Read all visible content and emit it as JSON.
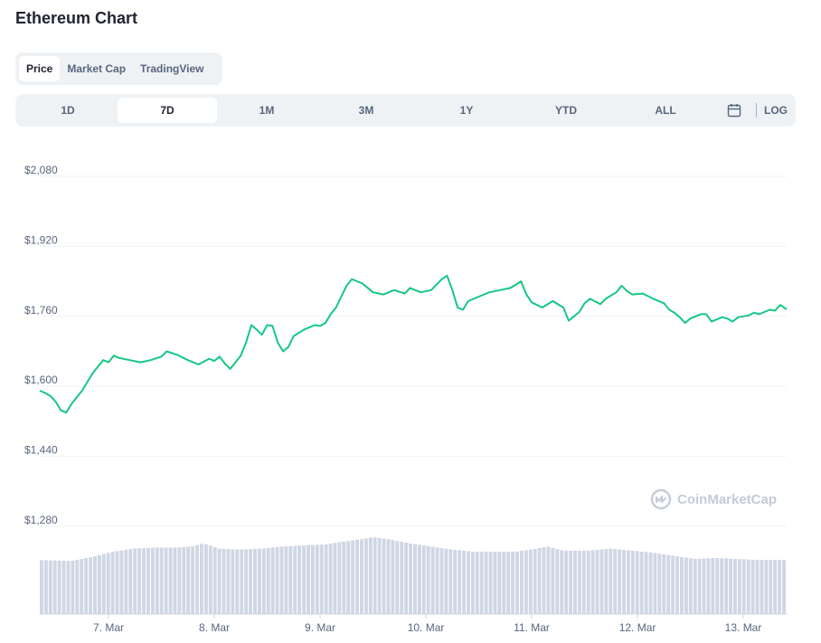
{
  "title": "Ethereum Chart",
  "chart_type_tabs": [
    "Price",
    "Market Cap",
    "TradingView"
  ],
  "active_chart_type": "Price",
  "ranges": [
    "1D",
    "7D",
    "1M",
    "3M",
    "1Y",
    "YTD",
    "ALL"
  ],
  "active_range": "7D",
  "log_label": "LOG",
  "watermark": "CoinMarketCap",
  "colors": {
    "line": "#16c784",
    "volume": "#cfd6e4",
    "grid": "#eff2f5",
    "axis_text": "#58667e"
  },
  "chart_data": {
    "type": "line",
    "title": "",
    "xlabel": "",
    "ylabel": "",
    "yticks": [
      "$2,080",
      "$1,920",
      "$1,760",
      "$1,600",
      "$1,440",
      "$1,280"
    ],
    "ytick_values": [
      2080,
      1920,
      1760,
      1600,
      1440,
      1280
    ],
    "ylim": [
      1280,
      2080
    ],
    "xticks": [
      "7. Mar",
      "8. Mar",
      "9. Mar",
      "10. Mar",
      "11. Mar",
      "12. Mar",
      "13. Mar"
    ],
    "xtick_values": [
      0.65,
      1.65,
      2.65,
      3.65,
      4.65,
      5.65,
      6.65
    ],
    "xlim": [
      0,
      7.06
    ],
    "grid": true,
    "series": [
      {
        "values": [
          [
            0.0,
            1590
          ],
          [
            0.05,
            1585
          ],
          [
            0.1,
            1578
          ],
          [
            0.15,
            1565
          ],
          [
            0.2,
            1545
          ],
          [
            0.25,
            1540
          ],
          [
            0.3,
            1560
          ],
          [
            0.35,
            1575
          ],
          [
            0.4,
            1590
          ],
          [
            0.45,
            1610
          ],
          [
            0.5,
            1630
          ],
          [
            0.55,
            1645
          ],
          [
            0.6,
            1660
          ],
          [
            0.65,
            1655
          ],
          [
            0.7,
            1670
          ],
          [
            0.75,
            1665
          ],
          [
            0.85,
            1660
          ],
          [
            0.95,
            1655
          ],
          [
            1.05,
            1660
          ],
          [
            1.15,
            1668
          ],
          [
            1.2,
            1680
          ],
          [
            1.3,
            1672
          ],
          [
            1.4,
            1660
          ],
          [
            1.5,
            1650
          ],
          [
            1.6,
            1663
          ],
          [
            1.65,
            1658
          ],
          [
            1.7,
            1668
          ],
          [
            1.75,
            1652
          ],
          [
            1.8,
            1640
          ],
          [
            1.85,
            1655
          ],
          [
            1.9,
            1670
          ],
          [
            1.95,
            1700
          ],
          [
            2.0,
            1740
          ],
          [
            2.05,
            1730
          ],
          [
            2.1,
            1718
          ],
          [
            2.15,
            1740
          ],
          [
            2.2,
            1738
          ],
          [
            2.25,
            1700
          ],
          [
            2.3,
            1680
          ],
          [
            2.35,
            1690
          ],
          [
            2.4,
            1715
          ],
          [
            2.5,
            1730
          ],
          [
            2.6,
            1740
          ],
          [
            2.65,
            1738
          ],
          [
            2.7,
            1745
          ],
          [
            2.75,
            1765
          ],
          [
            2.8,
            1780
          ],
          [
            2.85,
            1805
          ],
          [
            2.9,
            1830
          ],
          [
            2.95,
            1845
          ],
          [
            3.05,
            1835
          ],
          [
            3.15,
            1815
          ],
          [
            3.25,
            1810
          ],
          [
            3.35,
            1820
          ],
          [
            3.45,
            1812
          ],
          [
            3.5,
            1825
          ],
          [
            3.6,
            1815
          ],
          [
            3.7,
            1820
          ],
          [
            3.8,
            1845
          ],
          [
            3.85,
            1853
          ],
          [
            3.9,
            1820
          ],
          [
            3.95,
            1780
          ],
          [
            4.0,
            1775
          ],
          [
            4.05,
            1795
          ],
          [
            4.15,
            1805
          ],
          [
            4.25,
            1815
          ],
          [
            4.35,
            1820
          ],
          [
            4.45,
            1825
          ],
          [
            4.55,
            1840
          ],
          [
            4.6,
            1810
          ],
          [
            4.65,
            1792
          ],
          [
            4.75,
            1780
          ],
          [
            4.85,
            1795
          ],
          [
            4.95,
            1780
          ],
          [
            5.0,
            1750
          ],
          [
            5.05,
            1760
          ],
          [
            5.1,
            1770
          ],
          [
            5.15,
            1790
          ],
          [
            5.2,
            1800
          ],
          [
            5.3,
            1788
          ],
          [
            5.35,
            1800
          ],
          [
            5.45,
            1815
          ],
          [
            5.5,
            1830
          ],
          [
            5.55,
            1818
          ],
          [
            5.6,
            1810
          ],
          [
            5.7,
            1812
          ],
          [
            5.8,
            1800
          ],
          [
            5.9,
            1790
          ],
          [
            5.95,
            1775
          ],
          [
            6.0,
            1768
          ],
          [
            6.05,
            1758
          ],
          [
            6.1,
            1745
          ],
          [
            6.15,
            1755
          ],
          [
            6.25,
            1765
          ],
          [
            6.3,
            1765
          ],
          [
            6.35,
            1748
          ],
          [
            6.45,
            1758
          ],
          [
            6.5,
            1755
          ],
          [
            6.55,
            1748
          ],
          [
            6.6,
            1758
          ],
          [
            6.65,
            1760
          ],
          [
            6.7,
            1762
          ],
          [
            6.75,
            1768
          ],
          [
            6.8,
            1765
          ],
          [
            6.85,
            1770
          ],
          [
            6.9,
            1775
          ],
          [
            6.95,
            1773
          ],
          [
            7.0,
            1786
          ],
          [
            7.06,
            1776
          ]
        ]
      }
    ],
    "volume_relative": [
      [
        0.0,
        0.52
      ],
      [
        0.3,
        0.51
      ],
      [
        0.5,
        0.55
      ],
      [
        0.7,
        0.6
      ],
      [
        0.9,
        0.63
      ],
      [
        1.1,
        0.64
      ],
      [
        1.3,
        0.64
      ],
      [
        1.45,
        0.65
      ],
      [
        1.55,
        0.68
      ],
      [
        1.7,
        0.63
      ],
      [
        1.9,
        0.62
      ],
      [
        2.1,
        0.63
      ],
      [
        2.3,
        0.65
      ],
      [
        2.5,
        0.66
      ],
      [
        2.7,
        0.67
      ],
      [
        2.9,
        0.7
      ],
      [
        3.05,
        0.72
      ],
      [
        3.15,
        0.74
      ],
      [
        3.3,
        0.72
      ],
      [
        3.5,
        0.68
      ],
      [
        3.7,
        0.65
      ],
      [
        3.9,
        0.62
      ],
      [
        4.1,
        0.6
      ],
      [
        4.3,
        0.6
      ],
      [
        4.5,
        0.6
      ],
      [
        4.65,
        0.62
      ],
      [
        4.8,
        0.65
      ],
      [
        4.95,
        0.61
      ],
      [
        5.2,
        0.61
      ],
      [
        5.4,
        0.63
      ],
      [
        5.6,
        0.61
      ],
      [
        5.8,
        0.59
      ],
      [
        6.0,
        0.56
      ],
      [
        6.2,
        0.53
      ],
      [
        6.4,
        0.54
      ],
      [
        6.6,
        0.53
      ],
      [
        6.8,
        0.52
      ],
      [
        7.06,
        0.52
      ]
    ]
  }
}
